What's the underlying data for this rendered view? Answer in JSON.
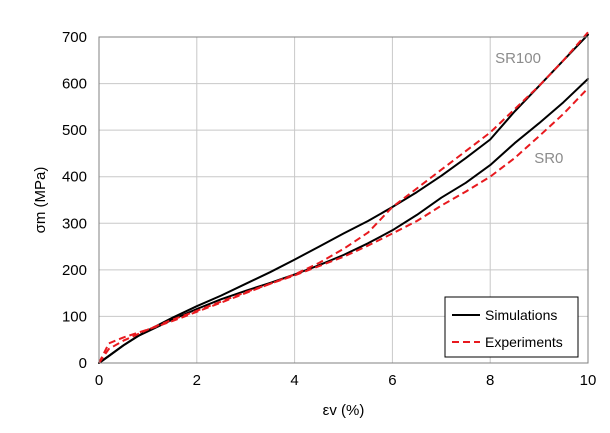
{
  "chart_data": {
    "type": "line",
    "title": "",
    "xlabel": "εv (%)",
    "ylabel": "σm  (MPa)",
    "xlim": [
      0,
      10
    ],
    "ylim": [
      0,
      700
    ],
    "xticks": [
      "0",
      "2",
      "4",
      "6",
      "8",
      "10"
    ],
    "yticks": [
      "0",
      "100",
      "200",
      "300",
      "400",
      "500",
      "600",
      "700"
    ],
    "grid": true,
    "legend_position": "bottom-right",
    "legend": [
      {
        "label": "Simulations",
        "color": "#000000",
        "style": "solid"
      },
      {
        "label": "Experiments",
        "color": "#e8191e",
        "style": "dashed"
      }
    ],
    "annotations": [
      {
        "text": "SR100",
        "x": 8.1,
        "y": 655
      },
      {
        "text": "SR0",
        "x": 8.9,
        "y": 440
      }
    ],
    "series": [
      {
        "name": "Simulations",
        "group": "SR100",
        "color": "#000000",
        "dash": "solid",
        "x": [
          0,
          0.2,
          0.5,
          0.8,
          1.0,
          1.5,
          2.0,
          2.5,
          3.0,
          3.5,
          4.0,
          4.5,
          5.0,
          5.5,
          6.0,
          6.5,
          7.0,
          7.5,
          8.0,
          8.5,
          9.0,
          9.5,
          10.0
        ],
        "y": [
          0,
          15,
          38,
          58,
          70,
          97,
          122,
          145,
          170,
          195,
          222,
          250,
          278,
          305,
          335,
          367,
          402,
          440,
          480,
          540,
          595,
          650,
          705
        ]
      },
      {
        "name": "Simulations",
        "group": "SR0",
        "color": "#000000",
        "dash": "solid",
        "x": [
          0,
          0.2,
          0.5,
          0.8,
          1.0,
          1.5,
          2.0,
          2.5,
          3.0,
          3.5,
          4.0,
          4.5,
          5.0,
          5.5,
          6.0,
          6.5,
          7.0,
          7.5,
          8.0,
          8.5,
          9.0,
          9.5,
          10.0
        ],
        "y": [
          0,
          15,
          38,
          58,
          68,
          93,
          116,
          137,
          155,
          172,
          190,
          210,
          232,
          257,
          285,
          318,
          355,
          387,
          425,
          472,
          515,
          560,
          610
        ]
      },
      {
        "name": "Experiments",
        "group": "SR100",
        "color": "#e8191e",
        "dash": "dashed",
        "x": [
          0,
          0.2,
          0.5,
          0.8,
          1.0,
          1.5,
          2.0,
          2.5,
          3.0,
          3.5,
          4.0,
          4.5,
          5.0,
          5.5,
          6.0,
          6.5,
          7.0,
          7.5,
          8.0,
          8.5,
          9.0,
          9.5,
          10.0
        ],
        "y": [
          0,
          30,
          48,
          62,
          72,
          93,
          112,
          132,
          152,
          170,
          190,
          215,
          245,
          280,
          335,
          375,
          415,
          455,
          495,
          545,
          595,
          650,
          710
        ]
      },
      {
        "name": "Experiments",
        "group": "SR0",
        "color": "#e8191e",
        "dash": "dashed",
        "x": [
          0,
          0.2,
          0.5,
          0.8,
          1.0,
          1.5,
          2.0,
          2.5,
          3.0,
          3.5,
          4.0,
          4.5,
          5.0,
          5.5,
          6.0,
          6.5,
          7.0,
          7.5,
          8.0,
          8.5,
          9.0,
          9.5,
          10.0
        ],
        "y": [
          0,
          42,
          55,
          65,
          72,
          90,
          110,
          130,
          150,
          170,
          188,
          208,
          228,
          252,
          278,
          305,
          338,
          368,
          400,
          440,
          487,
          535,
          590
        ]
      }
    ]
  }
}
